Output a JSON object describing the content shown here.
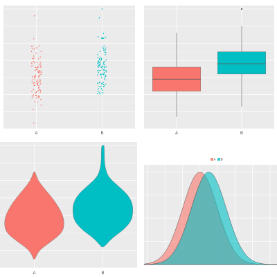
{
  "chart_data": [
    {
      "type": "scatter",
      "geom": "jitter",
      "categories": [
        "A",
        "B"
      ],
      "colors": {
        "A": "#f8766d",
        "B": "#00bfc4"
      },
      "series": [
        {
          "name": "A",
          "y_mean": 0.0,
          "y_sd": 1.0,
          "n": 100
        },
        {
          "name": "B",
          "y_mean": 0.5,
          "y_sd": 1.0,
          "n": 100,
          "outlier": 4.0
        }
      ],
      "ylim": [
        -3.0,
        4.2
      ],
      "grid": true,
      "xlabel": "",
      "ylabel": ""
    },
    {
      "type": "box",
      "categories": [
        "A",
        "B"
      ],
      "colors": {
        "A": "#f8766d",
        "B": "#00bfc4"
      },
      "series": [
        {
          "name": "A",
          "whisker_low": -2.3,
          "q1": -0.8,
          "median": -0.1,
          "q3": 0.6,
          "whisker_high": 2.6,
          "outliers": []
        },
        {
          "name": "B",
          "whisker_low": -1.7,
          "q1": 0.2,
          "median": 0.8,
          "q3": 1.5,
          "whisker_high": 3.0,
          "outliers": [
            4.0
          ]
        }
      ],
      "ylim": [
        -3.0,
        4.2
      ],
      "grid": true,
      "xlabel": "",
      "ylabel": ""
    },
    {
      "type": "violin",
      "categories": [
        "A",
        "B"
      ],
      "colors": {
        "A": "#f8766d",
        "B": "#00bfc4"
      },
      "series": [
        {
          "name": "A",
          "y": [
            -2.5,
            -2.0,
            -1.5,
            -1.0,
            -0.5,
            0.0,
            0.5,
            1.0,
            1.5,
            2.0,
            2.5
          ],
          "width": [
            0.02,
            0.15,
            0.55,
            0.92,
            1.0,
            0.95,
            0.8,
            0.6,
            0.35,
            0.12,
            0.02
          ]
        },
        {
          "name": "B",
          "y": [
            -1.8,
            -1.3,
            -0.8,
            -0.3,
            0.2,
            0.7,
            1.2,
            1.7,
            2.2,
            2.7,
            3.2,
            3.7,
            4.0
          ],
          "width": [
            0.04,
            0.3,
            0.7,
            0.95,
            1.0,
            0.98,
            0.82,
            0.5,
            0.18,
            0.08,
            0.05,
            0.05,
            0.04
          ]
        }
      ],
      "ylim": [
        -3.0,
        4.2
      ],
      "grid": true,
      "xlabel": "",
      "ylabel": ""
    },
    {
      "type": "area",
      "geom": "density",
      "legend": {
        "position": "top",
        "labels": [
          "A",
          "B"
        ]
      },
      "colors": {
        "A": "#f8766d",
        "B": "#00bfc4"
      },
      "alpha": 0.6,
      "series": [
        {
          "name": "A",
          "mean": 0.0,
          "sd": 1.0
        },
        {
          "name": "B",
          "mean": 0.5,
          "sd": 1.0
        }
      ],
      "xlim": [
        -3.2,
        4.4
      ],
      "ylim": [
        0,
        0.43
      ],
      "grid": true,
      "xlabel": "",
      "ylabel": ""
    }
  ]
}
